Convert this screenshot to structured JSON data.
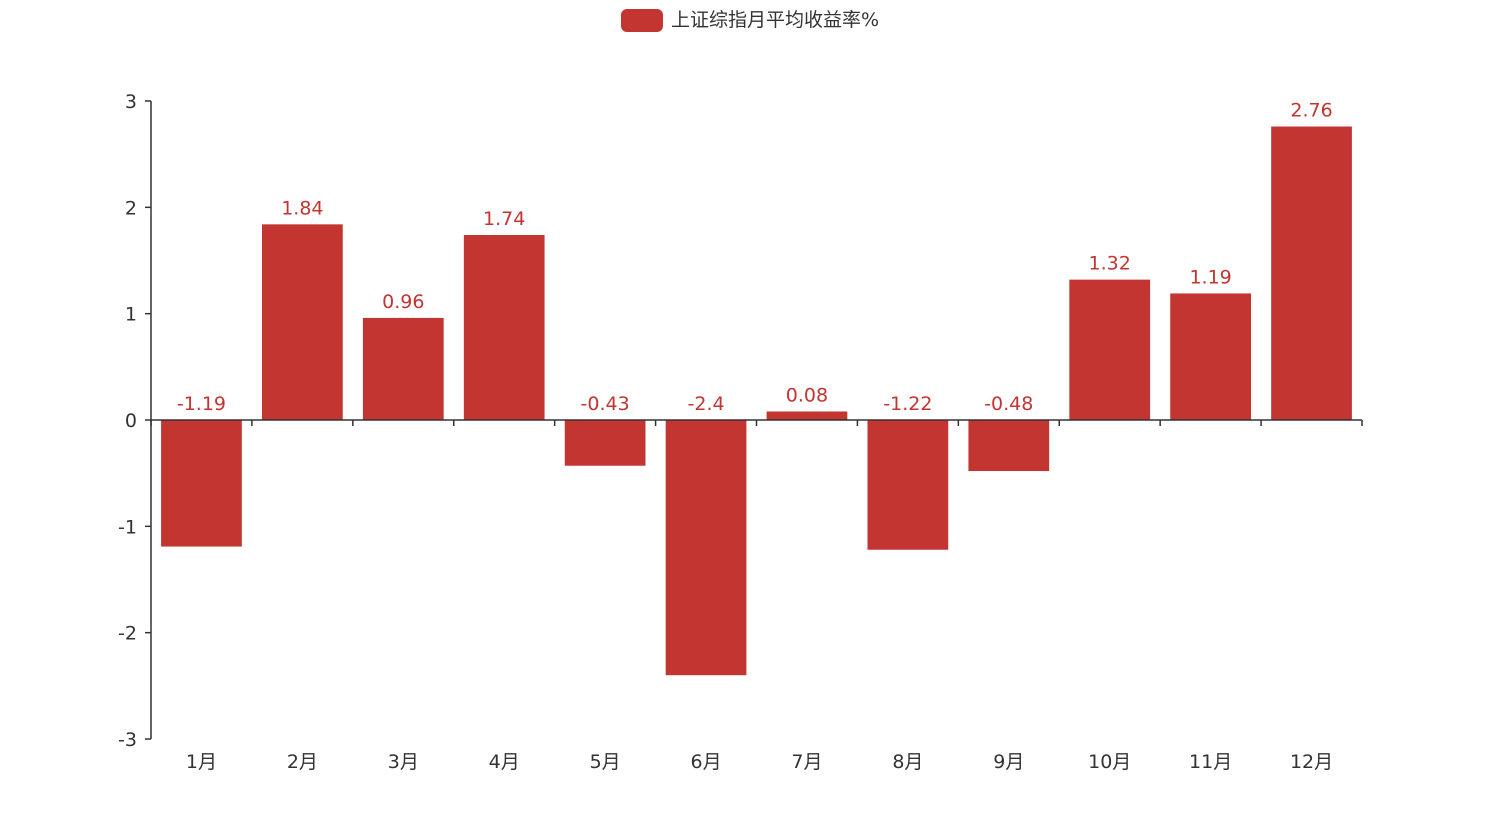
{
  "colors": {
    "bar": "#c23531",
    "axis": "#333333"
  },
  "chart_data": {
    "type": "bar",
    "categories": [
      "1月",
      "2月",
      "3月",
      "4月",
      "5月",
      "6月",
      "7月",
      "8月",
      "9月",
      "10月",
      "11月",
      "12月"
    ],
    "series": [
      {
        "name": "上证综指月平均收益率%",
        "values": [
          -1.19,
          1.84,
          0.96,
          1.74,
          -0.43,
          -2.4,
          0.08,
          -1.22,
          -0.48,
          1.32,
          1.19,
          2.76
        ]
      }
    ],
    "ylim": [
      -3,
      3
    ],
    "yticks": [
      3,
      2,
      1,
      0,
      -1,
      -2,
      -3
    ],
    "legend_position": "top-center",
    "grid": false
  }
}
